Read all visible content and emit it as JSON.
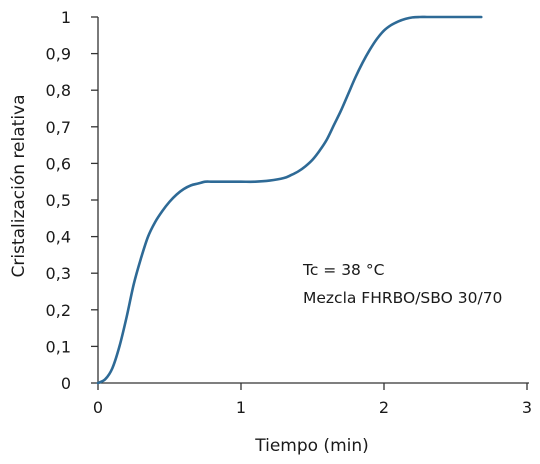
{
  "chart_data": {
    "type": "line",
    "xlabel": "Tiempo (min)",
    "ylabel": "Cristalización relativa",
    "xlim": [
      0,
      3
    ],
    "ylim": [
      0,
      1
    ],
    "x_ticks": [
      "0",
      "1",
      "2",
      "3"
    ],
    "y_ticks": [
      "0",
      "0,1",
      "0,2",
      "0,3",
      "0,4",
      "0,5",
      "0,6",
      "0,7",
      "0,8",
      "0,9",
      "1"
    ],
    "annotations": [
      "Tc = 38 °C",
      "Mezcla FHRBO/SBO 30/70"
    ],
    "line_color": "#2e6a96",
    "series": [
      {
        "x": [
          0.0,
          0.05,
          0.1,
          0.15,
          0.2,
          0.25,
          0.3,
          0.35,
          0.4,
          0.45,
          0.5,
          0.55,
          0.6,
          0.65,
          0.7,
          0.75,
          0.8,
          0.9,
          1.0,
          1.1,
          1.2,
          1.3,
          1.35,
          1.4,
          1.45,
          1.5,
          1.55,
          1.6,
          1.65,
          1.7,
          1.75,
          1.8,
          1.85,
          1.9,
          1.95,
          2.0,
          2.05,
          2.1,
          2.15,
          2.2,
          2.25,
          2.3,
          2.35,
          2.4,
          2.5,
          2.6,
          2.68
        ],
        "y": [
          0.0,
          0.01,
          0.04,
          0.1,
          0.18,
          0.27,
          0.34,
          0.4,
          0.44,
          0.47,
          0.495,
          0.515,
          0.53,
          0.54,
          0.545,
          0.55,
          0.55,
          0.55,
          0.55,
          0.55,
          0.553,
          0.56,
          0.568,
          0.578,
          0.592,
          0.61,
          0.635,
          0.665,
          0.705,
          0.745,
          0.79,
          0.835,
          0.875,
          0.91,
          0.94,
          0.963,
          0.978,
          0.988,
          0.995,
          0.999,
          1.0,
          1.0,
          1.0,
          1.0,
          1.0,
          1.0,
          1.0
        ]
      }
    ]
  }
}
